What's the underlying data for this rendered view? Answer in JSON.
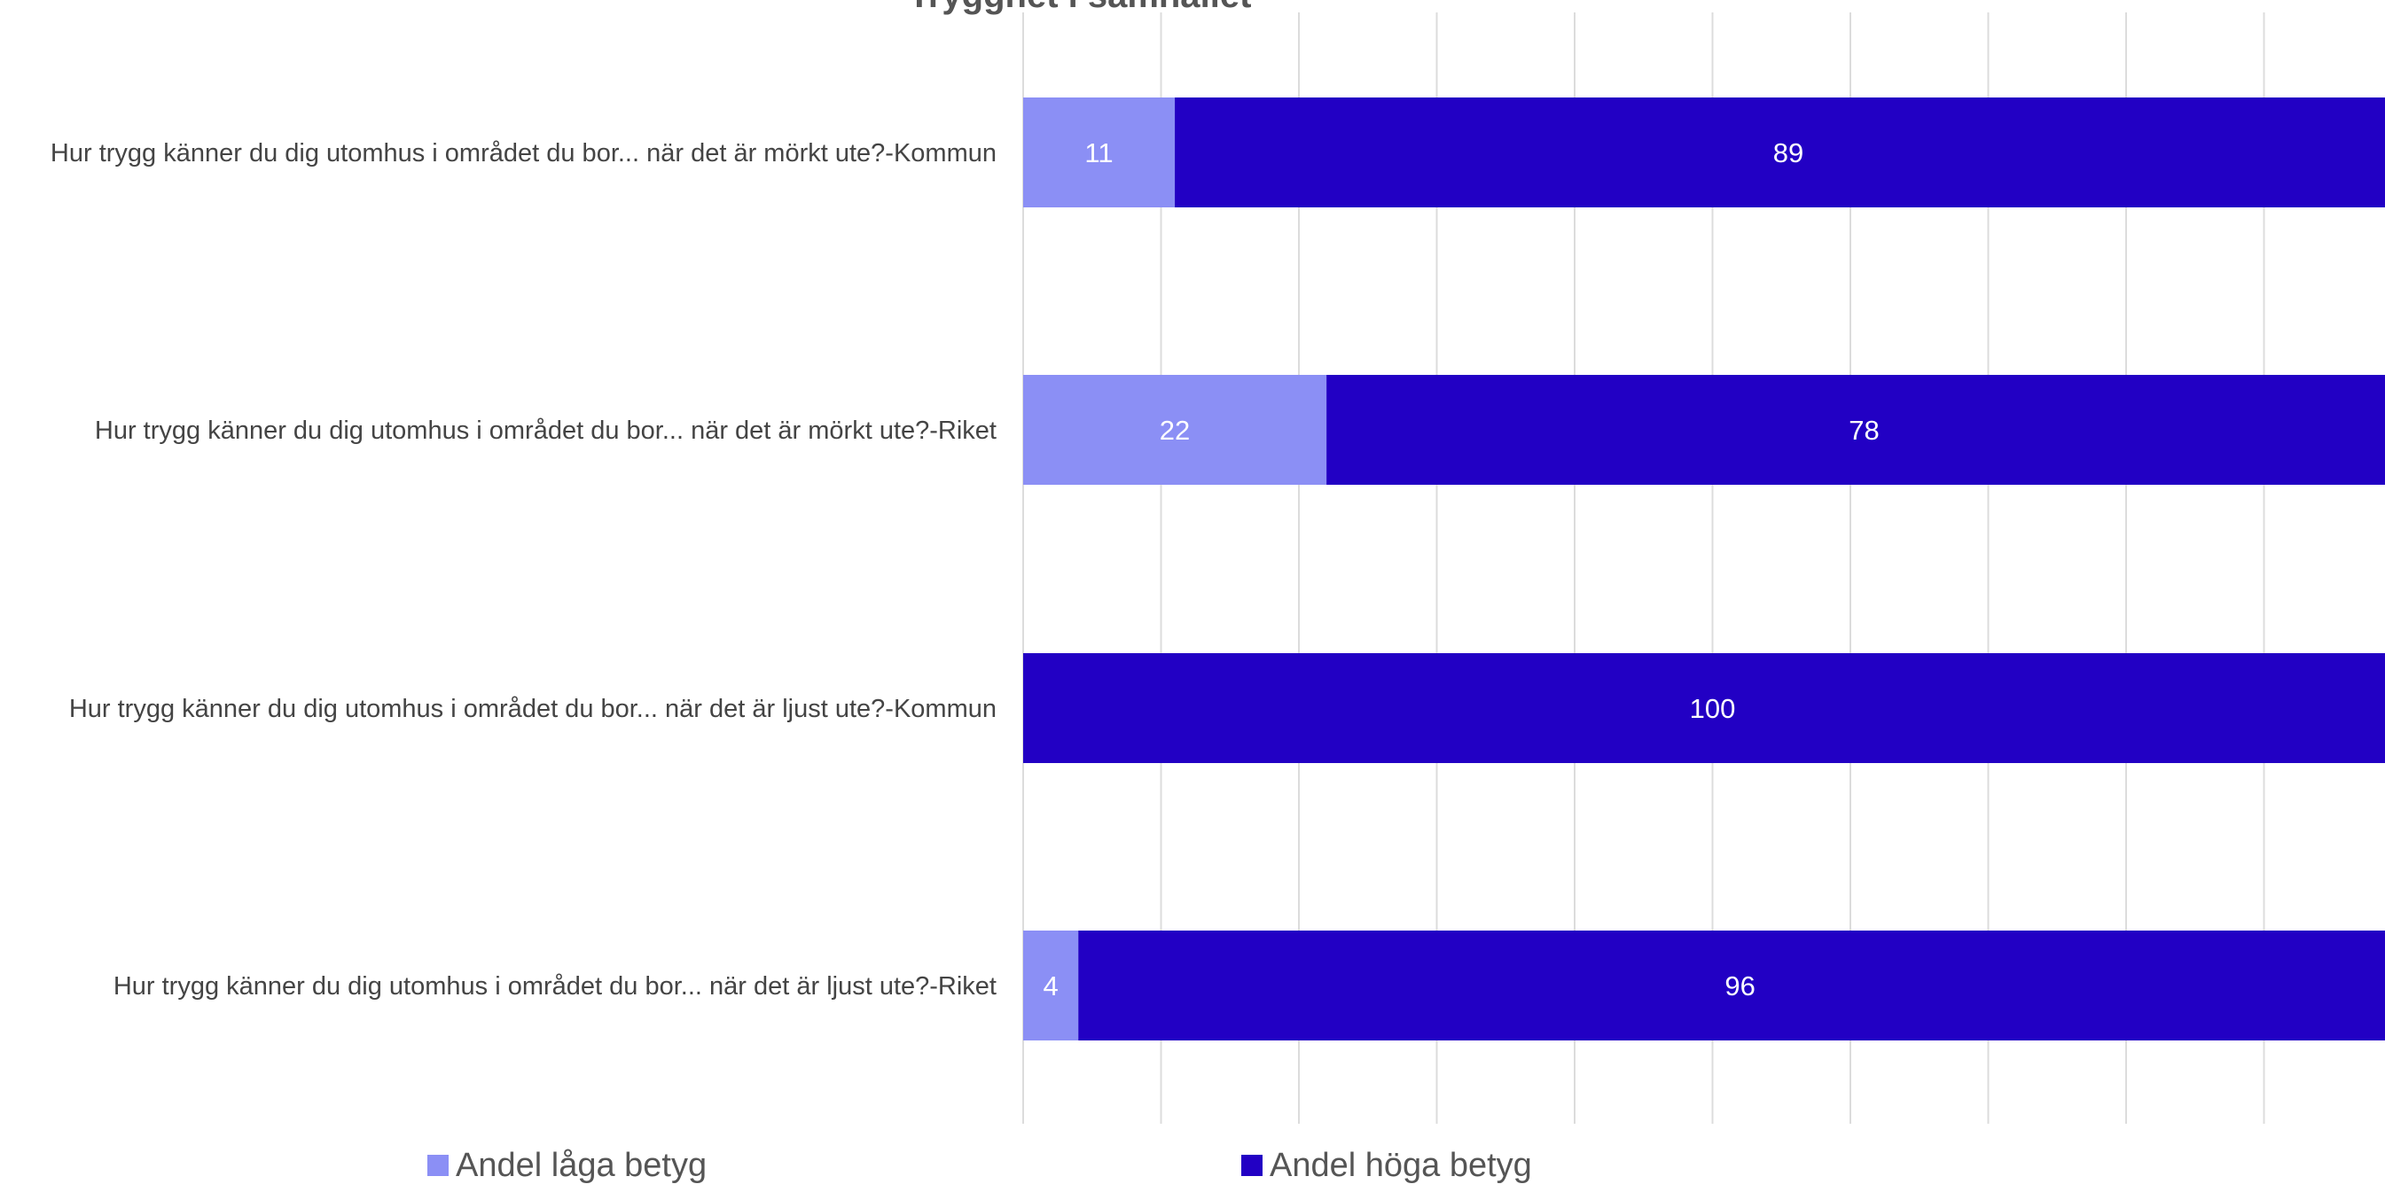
{
  "chart_data": {
    "type": "bar",
    "orientation": "horizontal",
    "stacked": true,
    "title": "Trygghet i samhället",
    "categories": [
      "Hur trygg känner du dig utomhus i området du bor... när det är mörkt ute?-Kommun",
      "Hur trygg känner du dig utomhus i området du bor... när det är mörkt ute?-Riket",
      "Hur trygg känner du dig utomhus i området du bor... när det är ljust ute?-Kommun",
      "Hur trygg känner du dig utomhus i området du bor... när det är ljust ute?-Riket"
    ],
    "series": [
      {
        "name": "Andel låga betyg",
        "color": "#8b8ff5",
        "values": [
          11,
          22,
          0,
          4
        ]
      },
      {
        "name": "Andel höga betyg",
        "color": "#2200c4",
        "values": [
          89,
          78,
          100,
          96
        ]
      }
    ],
    "xlim": [
      0,
      100
    ],
    "grid": true,
    "data_labels": true,
    "legend_position": "bottom"
  }
}
